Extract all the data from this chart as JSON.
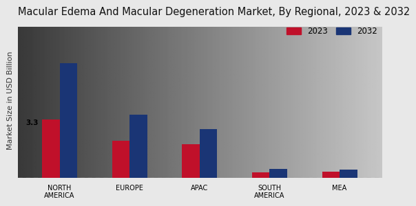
{
  "title": "Macular Edema And Macular Degeneration Market, By Regional, 2023 & 2032",
  "ylabel": "Market Size in USD Billion",
  "categories": [
    "NORTH\nAMERICA",
    "EUROPE",
    "APAC",
    "SOUTH\nAMERICA",
    "MEA"
  ],
  "values_2023": [
    3.3,
    2.1,
    1.9,
    0.32,
    0.38
  ],
  "values_2032": [
    6.5,
    3.6,
    2.75,
    0.52,
    0.48
  ],
  "color_2023": "#c0102a",
  "color_2032": "#1a3575",
  "annotation_text": "3.3",
  "annotation_index": 0,
  "bg_color_left": "#d8d8d8",
  "bg_color_right": "#f0f0f0",
  "legend_labels": [
    "2023",
    "2032"
  ],
  "bar_width": 0.25,
  "title_fontsize": 10.5,
  "axis_label_fontsize": 8,
  "tick_fontsize": 7
}
